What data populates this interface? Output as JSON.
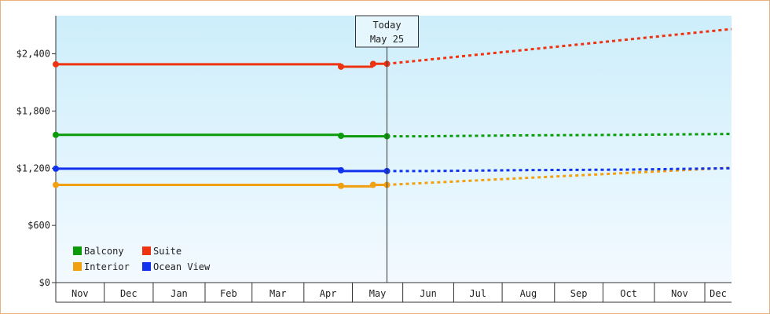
{
  "chart_data": {
    "type": "line",
    "title": "",
    "xlabel": "",
    "ylabel": "",
    "ylim": [
      0,
      2800
    ],
    "y_ticks": [
      0,
      600,
      1200,
      1800,
      2400
    ],
    "y_tick_labels": [
      "$0",
      "$600",
      "$1,200",
      "$1,800",
      "$2,400"
    ],
    "x_range": [
      0,
      13.67
    ],
    "x_ticks_labels": [
      "Nov",
      "Dec",
      "Jan",
      "Feb",
      "Mar",
      "Apr",
      "May",
      "Jun",
      "Jul",
      "Aug",
      "Sep",
      "Oct",
      "Nov",
      "Dec"
    ],
    "x_tick_boundaries": [
      0,
      0.98,
      1.97,
      3.02,
      3.97,
      5.02,
      6.0,
      7.02,
      8.05,
      9.03,
      10.09,
      11.07,
      12.11,
      13.13,
      13.67
    ],
    "today_x": 6.7,
    "today_label": [
      "Today",
      "May 25"
    ],
    "grid": false,
    "legend_position": "bottom-left",
    "series": [
      {
        "name": "Balcony",
        "color": "#0a9a0a",
        "points": [
          [
            0,
            1550
          ],
          [
            5.75,
            1550
          ],
          [
            5.78,
            1535
          ],
          [
            6.7,
            1535
          ]
        ],
        "markers": [
          0,
          5.77,
          6.7
        ],
        "forecast": [
          [
            6.7,
            1535
          ],
          [
            7.4,
            1535
          ],
          [
            9.5,
            1545
          ],
          [
            11.5,
            1550
          ],
          [
            13.67,
            1560
          ]
        ]
      },
      {
        "name": "Suite",
        "color": "#ee3311",
        "points": [
          [
            0,
            2290
          ],
          [
            5.75,
            2290
          ],
          [
            5.77,
            2265
          ],
          [
            6.4,
            2265
          ],
          [
            6.42,
            2295
          ],
          [
            6.7,
            2295
          ]
        ],
        "markers": [
          0,
          5.77,
          6.42,
          6.7
        ],
        "forecast": [
          [
            6.7,
            2295
          ],
          [
            13.67,
            2660
          ]
        ]
      },
      {
        "name": "Interior",
        "color": "#f0a010",
        "points": [
          [
            0,
            1025
          ],
          [
            5.75,
            1025
          ],
          [
            5.78,
            1010
          ],
          [
            6.4,
            1010
          ],
          [
            6.42,
            1025
          ],
          [
            6.7,
            1025
          ]
        ],
        "markers": [
          0,
          5.77,
          6.42,
          6.7
        ],
        "forecast": [
          [
            6.7,
            1025
          ],
          [
            13.67,
            1205
          ]
        ]
      },
      {
        "name": "Ocean View",
        "color": "#1133ee",
        "points": [
          [
            0,
            1195
          ],
          [
            5.75,
            1195
          ],
          [
            5.78,
            1170
          ],
          [
            6.7,
            1170
          ]
        ],
        "markers": [
          0,
          5.77,
          6.7
        ],
        "forecast": [
          [
            6.7,
            1170
          ],
          [
            7.5,
            1170
          ],
          [
            9.5,
            1180
          ],
          [
            11.5,
            1185
          ],
          [
            13.67,
            1200
          ]
        ]
      }
    ],
    "colors": {
      "plot_top": "#cdeefb",
      "plot_bottom": "#f3faff",
      "axis": "#333333",
      "frame": "#e8b27a"
    }
  }
}
